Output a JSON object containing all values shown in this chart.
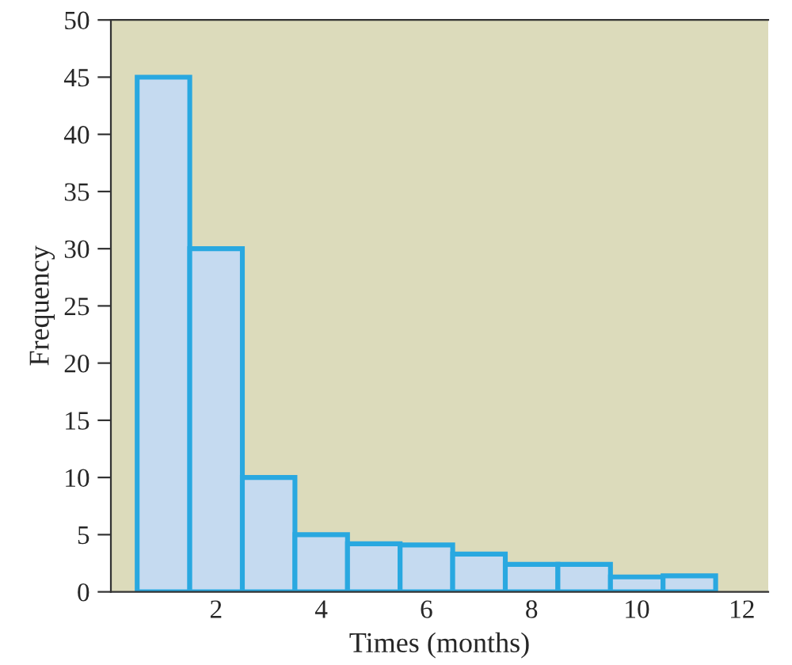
{
  "chart_data": {
    "type": "histogram",
    "xlabel": "Times (months)",
    "ylabel": "Frequency",
    "bins": [
      0.5,
      1.5,
      2.5,
      3.5,
      4.5,
      5.5,
      6.5,
      7.5,
      8.5,
      9.5,
      10.5,
      11.5
    ],
    "values": [
      45,
      30,
      10,
      5,
      4.2,
      4.1,
      3.3,
      2.4,
      2.4,
      1.3,
      1.4
    ],
    "color": "#c5daf0",
    "xlim": [
      0,
      12.5
    ],
    "ylim": [
      0,
      50
    ],
    "xticks": [
      2,
      4,
      6,
      8,
      10,
      12
    ],
    "yticks": [
      0,
      5,
      10,
      15,
      20,
      25,
      30,
      35,
      40,
      45,
      50
    ],
    "grid": false
  }
}
